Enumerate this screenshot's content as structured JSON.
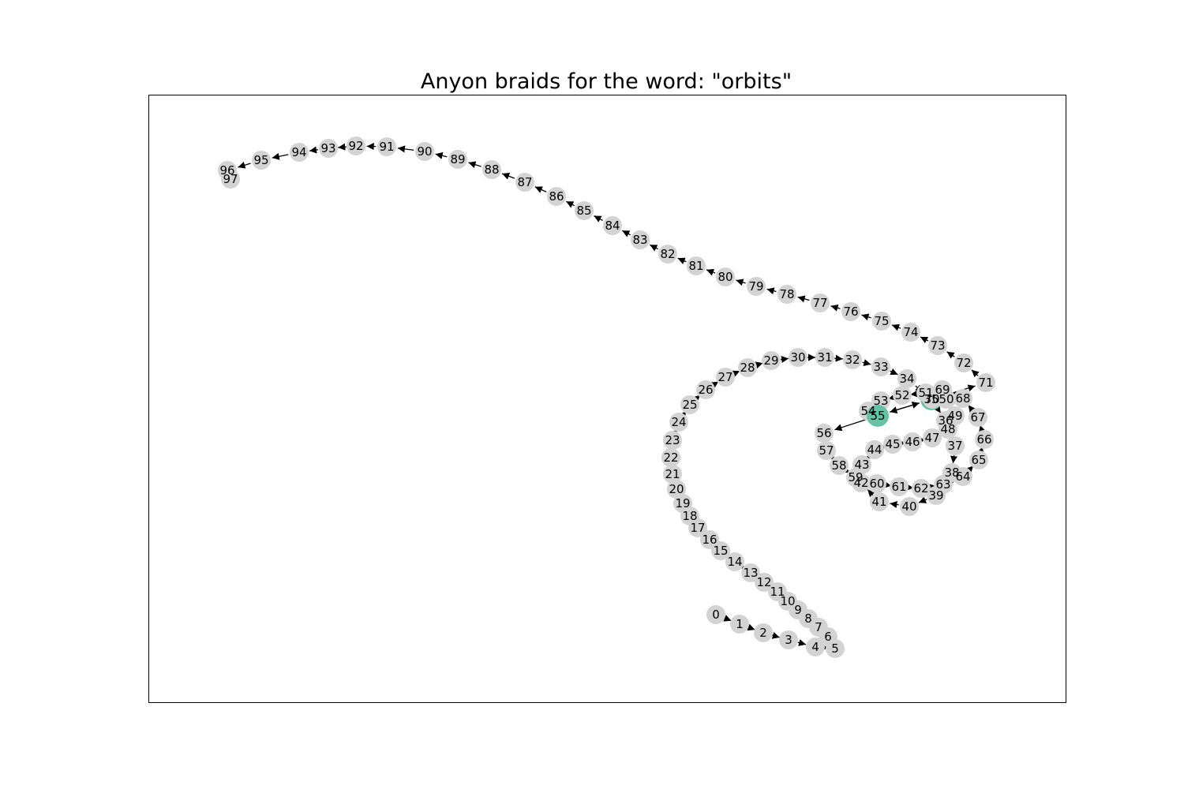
{
  "title": "Anyon braids for the word: \"orbits\"",
  "colors": {
    "node": "#d3d3d3",
    "highlight": "#66c2a5",
    "edge": "#000000"
  },
  "graph": {
    "nodes": [
      {
        "id": "0"
      },
      {
        "id": "1"
      },
      {
        "id": "2"
      },
      {
        "id": "3"
      },
      {
        "id": "4"
      },
      {
        "id": "5"
      },
      {
        "id": "6"
      },
      {
        "id": "7"
      },
      {
        "id": "8"
      },
      {
        "id": "9"
      },
      {
        "id": "10"
      },
      {
        "id": "11"
      },
      {
        "id": "12"
      },
      {
        "id": "13"
      },
      {
        "id": "14"
      },
      {
        "id": "15"
      },
      {
        "id": "16"
      },
      {
        "id": "17"
      },
      {
        "id": "18"
      },
      {
        "id": "19"
      },
      {
        "id": "20"
      },
      {
        "id": "21"
      },
      {
        "id": "22"
      },
      {
        "id": "23"
      },
      {
        "id": "24"
      },
      {
        "id": "25"
      },
      {
        "id": "26"
      },
      {
        "id": "27"
      },
      {
        "id": "28"
      },
      {
        "id": "29"
      },
      {
        "id": "30"
      },
      {
        "id": "31"
      },
      {
        "id": "32"
      },
      {
        "id": "33"
      },
      {
        "id": "34"
      },
      {
        "id": "35",
        "highlight": true
      },
      {
        "id": "36"
      },
      {
        "id": "37"
      },
      {
        "id": "38"
      },
      {
        "id": "39"
      },
      {
        "id": "40"
      },
      {
        "id": "41"
      },
      {
        "id": "42"
      },
      {
        "id": "43"
      },
      {
        "id": "44"
      },
      {
        "id": "45"
      },
      {
        "id": "46"
      },
      {
        "id": "47"
      },
      {
        "id": "48"
      },
      {
        "id": "49"
      },
      {
        "id": "50"
      },
      {
        "id": "51"
      },
      {
        "id": "52"
      },
      {
        "id": "53"
      },
      {
        "id": "54"
      },
      {
        "id": "55",
        "highlight": true
      },
      {
        "id": "56"
      },
      {
        "id": "57"
      },
      {
        "id": "58"
      },
      {
        "id": "59"
      },
      {
        "id": "60"
      },
      {
        "id": "61"
      },
      {
        "id": "62"
      },
      {
        "id": "63"
      },
      {
        "id": "64"
      },
      {
        "id": "65"
      },
      {
        "id": "66"
      },
      {
        "id": "67"
      },
      {
        "id": "68"
      },
      {
        "id": "69"
      },
      {
        "id": "70"
      },
      {
        "id": "71"
      },
      {
        "id": "72"
      },
      {
        "id": "73"
      },
      {
        "id": "74"
      },
      {
        "id": "75"
      },
      {
        "id": "76"
      },
      {
        "id": "77"
      },
      {
        "id": "78"
      },
      {
        "id": "79"
      },
      {
        "id": "80"
      },
      {
        "id": "81"
      },
      {
        "id": "82"
      },
      {
        "id": "83"
      },
      {
        "id": "84"
      },
      {
        "id": "85"
      },
      {
        "id": "86"
      },
      {
        "id": "87"
      },
      {
        "id": "88"
      },
      {
        "id": "89"
      },
      {
        "id": "90"
      },
      {
        "id": "91"
      },
      {
        "id": "92"
      },
      {
        "id": "93"
      },
      {
        "id": "94"
      },
      {
        "id": "95"
      },
      {
        "id": "96"
      },
      {
        "id": "97"
      }
    ],
    "edges": [
      [
        "0",
        "1"
      ],
      [
        "1",
        "2"
      ],
      [
        "2",
        "3"
      ],
      [
        "3",
        "4"
      ],
      [
        "4",
        "5"
      ],
      [
        "5",
        "6"
      ],
      [
        "6",
        "7"
      ],
      [
        "7",
        "8"
      ],
      [
        "8",
        "9"
      ],
      [
        "9",
        "10"
      ],
      [
        "10",
        "11"
      ],
      [
        "11",
        "12"
      ],
      [
        "12",
        "13"
      ],
      [
        "13",
        "14"
      ],
      [
        "14",
        "15"
      ],
      [
        "15",
        "16"
      ],
      [
        "16",
        "17"
      ],
      [
        "17",
        "18"
      ],
      [
        "18",
        "19"
      ],
      [
        "19",
        "20"
      ],
      [
        "20",
        "21"
      ],
      [
        "21",
        "22"
      ],
      [
        "22",
        "23"
      ],
      [
        "23",
        "24"
      ],
      [
        "24",
        "25"
      ],
      [
        "25",
        "26"
      ],
      [
        "26",
        "27"
      ],
      [
        "27",
        "28"
      ],
      [
        "28",
        "29"
      ],
      [
        "29",
        "30"
      ],
      [
        "30",
        "31"
      ],
      [
        "31",
        "32"
      ],
      [
        "32",
        "33"
      ],
      [
        "33",
        "34"
      ],
      [
        "34",
        "35"
      ],
      [
        "35",
        "36"
      ],
      [
        "36",
        "37"
      ],
      [
        "37",
        "38"
      ],
      [
        "38",
        "39"
      ],
      [
        "39",
        "40"
      ],
      [
        "40",
        "41"
      ],
      [
        "41",
        "42"
      ],
      [
        "42",
        "43"
      ],
      [
        "43",
        "44"
      ],
      [
        "44",
        "45"
      ],
      [
        "45",
        "46"
      ],
      [
        "46",
        "47"
      ],
      [
        "47",
        "48"
      ],
      [
        "48",
        "49"
      ],
      [
        "49",
        "50"
      ],
      [
        "50",
        "51"
      ],
      [
        "51",
        "52"
      ],
      [
        "52",
        "53"
      ],
      [
        "53",
        "54"
      ],
      [
        "54",
        "55"
      ],
      [
        "55",
        "56"
      ],
      [
        "56",
        "57"
      ],
      [
        "57",
        "58"
      ],
      [
        "58",
        "59"
      ],
      [
        "59",
        "60"
      ],
      [
        "60",
        "61"
      ],
      [
        "61",
        "62"
      ],
      [
        "62",
        "63"
      ],
      [
        "63",
        "64"
      ],
      [
        "64",
        "65"
      ],
      [
        "65",
        "66"
      ],
      [
        "66",
        "67"
      ],
      [
        "67",
        "68"
      ],
      [
        "68",
        "69"
      ],
      [
        "69",
        "70"
      ],
      [
        "70",
        "71"
      ],
      [
        "71",
        "72"
      ],
      [
        "72",
        "73"
      ],
      [
        "73",
        "74"
      ],
      [
        "74",
        "75"
      ],
      [
        "75",
        "76"
      ],
      [
        "76",
        "77"
      ],
      [
        "77",
        "78"
      ],
      [
        "78",
        "79"
      ],
      [
        "79",
        "80"
      ],
      [
        "80",
        "81"
      ],
      [
        "81",
        "82"
      ],
      [
        "82",
        "83"
      ],
      [
        "83",
        "84"
      ],
      [
        "84",
        "85"
      ],
      [
        "85",
        "86"
      ],
      [
        "86",
        "87"
      ],
      [
        "87",
        "88"
      ],
      [
        "88",
        "89"
      ],
      [
        "89",
        "90"
      ],
      [
        "90",
        "91"
      ],
      [
        "91",
        "92"
      ],
      [
        "92",
        "93"
      ],
      [
        "93",
        "94"
      ],
      [
        "94",
        "95"
      ],
      [
        "95",
        "96"
      ],
      [
        "96",
        "97"
      ],
      [
        "35",
        "55"
      ],
      [
        "55",
        "35"
      ]
    ]
  }
}
